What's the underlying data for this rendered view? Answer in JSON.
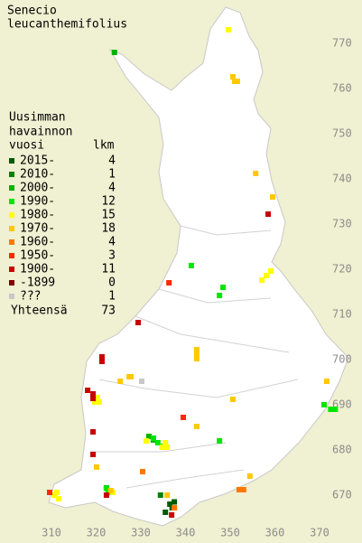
{
  "title": [
    "Senecio",
    "leucanthemifolius"
  ],
  "legend": {
    "header": [
      "Uusimman",
      "havainnon",
      "vuosi",
      "lkm"
    ],
    "items": [
      {
        "label": "2015-",
        "count": 4,
        "color": "#005a00",
        "squares": [
          [
            336.5,
            668
          ],
          [
            335.5,
            666.2
          ],
          [
            337,
            667.2
          ],
          [
            337.5,
            668.5
          ]
        ]
      },
      {
        "label": "2010-",
        "count": 1,
        "color": "#008200",
        "squares": [
          [
            334.4,
            670
          ]
        ]
      },
      {
        "label": "2000-",
        "count": 4,
        "color": "#00b400",
        "squares": [
          [
            324.1,
            768
          ],
          [
            332.8,
            682.2
          ],
          [
            322.3,
            671.6
          ],
          [
            331.8,
            683
          ]
        ]
      },
      {
        "label": "1990-",
        "count": 12,
        "color": "#00e600",
        "squares": [
          [
            341.3,
            720.8
          ],
          [
            348.4,
            716
          ],
          [
            347.6,
            714.2
          ],
          [
            333.8,
            681.6
          ],
          [
            332.8,
            682.6
          ],
          [
            347.6,
            682
          ],
          [
            322.7,
            670.6
          ],
          [
            371,
            690
          ],
          [
            372.5,
            689
          ],
          [
            373.5,
            689
          ],
          [
            322.3,
            671.5
          ],
          [
            334.8,
            680.8
          ]
        ]
      },
      {
        "label": "1980-",
        "count": 15,
        "color": "#ffff00",
        "squares": [
          [
            349.6,
            773
          ],
          [
            357.1,
            717.6
          ],
          [
            358.1,
            718.6
          ],
          [
            359.1,
            719.6
          ],
          [
            334.8,
            680.6
          ],
          [
            335.9,
            680.6
          ],
          [
            331.2,
            682
          ],
          [
            319.7,
            690.6
          ],
          [
            320.3,
            691.6
          ],
          [
            310.6,
            670
          ],
          [
            311.6,
            669.2
          ],
          [
            335.5,
            681.6
          ],
          [
            323.7,
            670.6
          ],
          [
            320.7,
            690.6
          ],
          [
            311.2,
            670.6
          ]
        ]
      },
      {
        "label": "1970-",
        "count": 18,
        "color": "#ffc800",
        "squares": [
          [
            350.6,
            762.6
          ],
          [
            351.6,
            761.6
          ],
          [
            351,
            761.6
          ],
          [
            355.7,
            741.2
          ],
          [
            359.5,
            736
          ],
          [
            342.5,
            701.2
          ],
          [
            342.5,
            700.2
          ],
          [
            327.4,
            696.2
          ],
          [
            325.4,
            695.2
          ],
          [
            350.6,
            691.2
          ],
          [
            342.5,
            685.2
          ],
          [
            320.1,
            676.2
          ],
          [
            354.4,
            674.2
          ],
          [
            323.3,
            671
          ],
          [
            335.9,
            670
          ],
          [
            371.6,
            695.2
          ],
          [
            327.8,
            696.2
          ],
          [
            342.5,
            702.2
          ]
        ]
      },
      {
        "label": "1960-",
        "count": 4,
        "color": "#ff7800",
        "squares": [
          [
            330.4,
            675.2
          ],
          [
            352,
            671.2
          ],
          [
            353,
            671.2
          ],
          [
            337.5,
            667.2
          ]
        ]
      },
      {
        "label": "1950-",
        "count": 3,
        "color": "#ff2800",
        "squares": [
          [
            336.3,
            717
          ],
          [
            339.5,
            687.2
          ],
          [
            309.6,
            670.6
          ]
        ]
      },
      {
        "label": "1900-",
        "count": 11,
        "color": "#c80000",
        "squares": [
          [
            358.5,
            732.2
          ],
          [
            329.4,
            708.2
          ],
          [
            321.3,
            700.6
          ],
          [
            321.3,
            699.6
          ],
          [
            318.1,
            693.2
          ],
          [
            319.3,
            692.4
          ],
          [
            319.3,
            691.4
          ],
          [
            319.3,
            684
          ],
          [
            319.3,
            679
          ],
          [
            322.3,
            670
          ],
          [
            336.9,
            665.6
          ]
        ]
      },
      {
        "label": "-1899",
        "count": 0,
        "color": "#800000",
        "squares": []
      },
      {
        "label": "???",
        "count": 1,
        "color": "#c8c8c8",
        "squares": [
          [
            330.2,
            695.2
          ]
        ]
      }
    ],
    "total_label": "Yhteensä",
    "total": 73
  },
  "axes": {
    "xticks": [
      310,
      320,
      330,
      340,
      350,
      360,
      370
    ],
    "yticks": [
      770,
      760,
      750,
      740,
      730,
      720,
      710,
      700,
      690,
      680,
      670
    ]
  }
}
